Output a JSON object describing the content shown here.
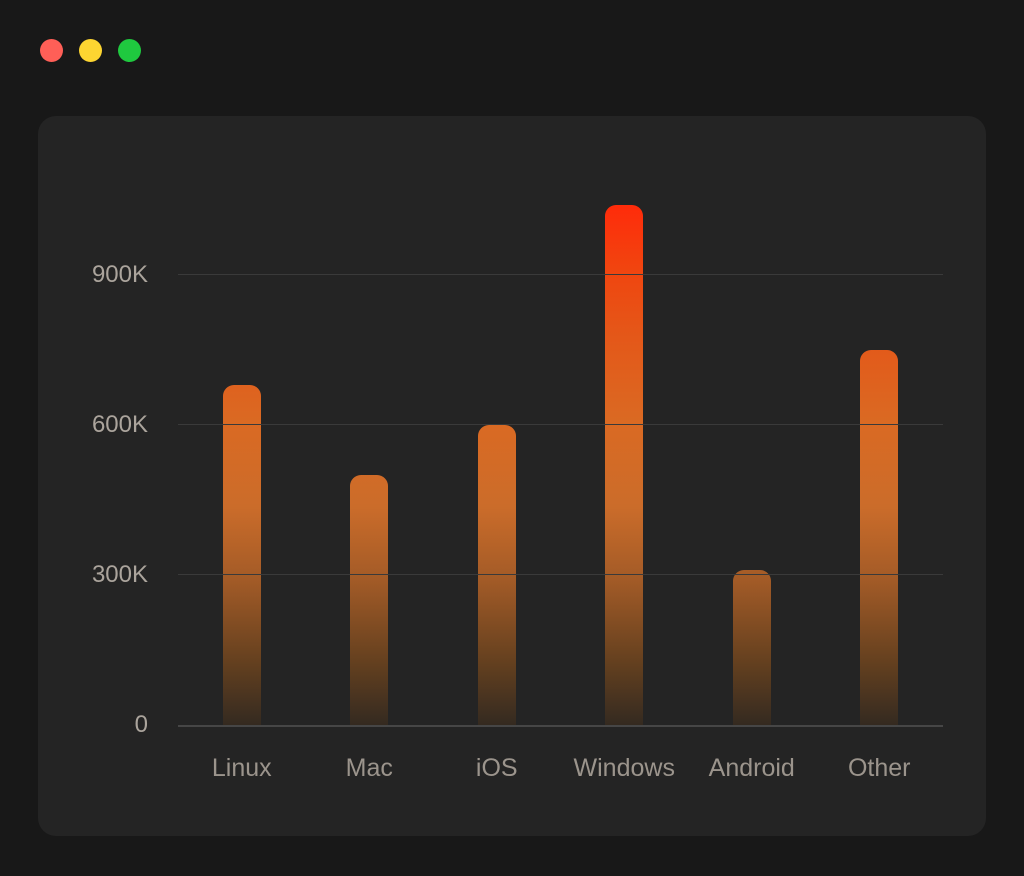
{
  "window": {
    "controls": [
      {
        "name": "close",
        "color": "#ff5f57"
      },
      {
        "name": "minimize",
        "color": "#fdd531"
      },
      {
        "name": "zoom",
        "color": "#1fc93f"
      }
    ]
  },
  "colors": {
    "page_background": "#181818",
    "card_background": "#242424",
    "gridline": "#3a3a3a",
    "axis_line": "#464646",
    "y_label_text": "#aba49c",
    "x_label_text": "#9b948c",
    "bar_gradient_top": "#ff2b0a",
    "bar_gradient_bottom": "#342a20"
  },
  "chart_data": {
    "type": "bar",
    "title": "",
    "xlabel": "",
    "ylabel": "",
    "categories": [
      "Linux",
      "Mac",
      "iOS",
      "Windows",
      "Android",
      "Other"
    ],
    "values": [
      680000,
      500000,
      600000,
      1040000,
      310000,
      750000
    ],
    "yticks": [
      {
        "label": "900K",
        "value": 900000
      },
      {
        "label": "600K",
        "value": 600000
      },
      {
        "label": "300K",
        "value": 300000
      },
      {
        "label": "0",
        "value": 0
      }
    ],
    "ylim": [
      0,
      1100000
    ],
    "grid": true,
    "legend": false
  }
}
